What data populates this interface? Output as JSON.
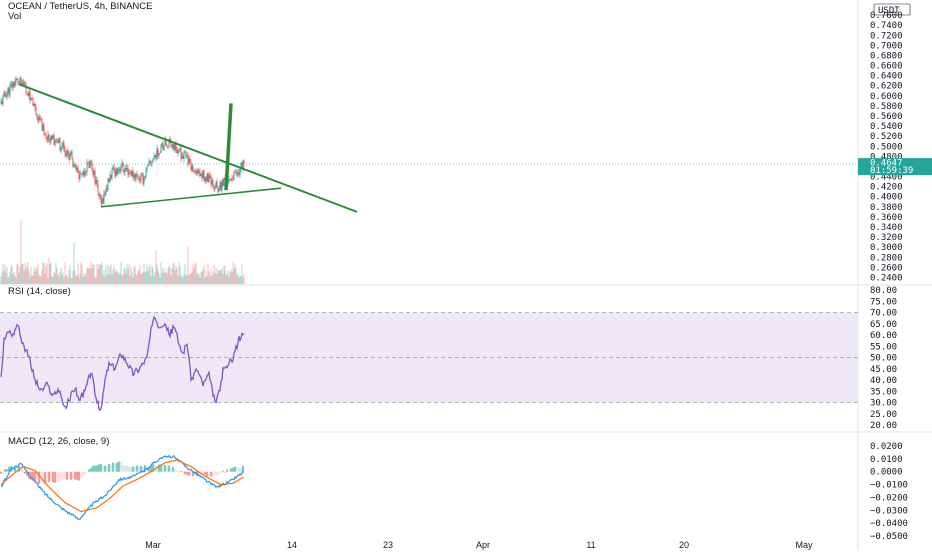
{
  "header": {
    "symbol_line": "OCEAN / TetherUS, 4h, BINANCE",
    "vol_label": "Vol",
    "currency_label": "USDT"
  },
  "price_badge": {
    "price": "0.4647",
    "countdown": "01:59:39"
  },
  "rsi_header": "RSI (14, close)",
  "macd_header": "MACD (12, 26, close, 9)",
  "colors": {
    "up": "#26a69a",
    "down": "#ef5350",
    "trendline": "#2e8b3a",
    "rsi_line": "#7e57c2",
    "rsi_band": "#ede7f6",
    "macd_line": "#2196f3",
    "signal_line": "#ff6d00",
    "badge": "#26a69a"
  },
  "chart_data": [
    {
      "type": "candlestick",
      "name": "price",
      "title": "OCEAN / TetherUS, 4h, BINANCE",
      "y_ticks": [
        "0.7600",
        "0.7400",
        "0.7200",
        "0.7000",
        "0.6800",
        "0.6600",
        "0.6400",
        "0.6200",
        "0.6000",
        "0.5800",
        "0.5600",
        "0.5400",
        "0.5200",
        "0.5000",
        "0.4800",
        "0.4600",
        "0.4400",
        "0.4200",
        "0.4000",
        "0.3800",
        "0.3600",
        "0.3400",
        "0.3200",
        "0.3000",
        "0.2800",
        "0.2600",
        "0.2400"
      ],
      "ylim": [
        0.235,
        0.775
      ],
      "last_price": 0.4647,
      "start_price": 0.585,
      "path_anchors": [
        [
          0,
          0.585
        ],
        [
          5,
          0.605
        ],
        [
          15,
          0.63
        ],
        [
          24,
          0.62
        ],
        [
          34,
          0.57
        ],
        [
          46,
          0.52
        ],
        [
          58,
          0.505
        ],
        [
          70,
          0.48
        ],
        [
          78,
          0.44
        ],
        [
          90,
          0.47
        ],
        [
          100,
          0.385
        ],
        [
          110,
          0.445
        ],
        [
          120,
          0.46
        ],
        [
          132,
          0.445
        ],
        [
          142,
          0.435
        ],
        [
          150,
          0.47
        ],
        [
          160,
          0.5
        ],
        [
          170,
          0.505
        ],
        [
          178,
          0.49
        ],
        [
          186,
          0.475
        ],
        [
          192,
          0.445
        ],
        [
          200,
          0.445
        ],
        [
          210,
          0.43
        ],
        [
          218,
          0.415
        ],
        [
          226,
          0.435
        ],
        [
          234,
          0.44
        ],
        [
          243,
          0.4647
        ]
      ],
      "drawings": [
        {
          "kind": "descending-trendline",
          "from": [
            18,
            0.623
          ],
          "to": [
            356,
            0.37
          ]
        },
        {
          "kind": "ascending-support",
          "from": [
            100,
            0.38
          ],
          "to": [
            280,
            0.417
          ]
        },
        {
          "kind": "breakout-arrow",
          "from": [
            225,
            0.413
          ],
          "to": [
            230,
            0.585
          ]
        }
      ]
    },
    {
      "type": "bar",
      "name": "volume",
      "title": "Vol",
      "description_levels": "relative volume heights 0-1",
      "spikes": [
        [
          20,
          0.85
        ],
        [
          73,
          0.55
        ],
        [
          155,
          0.45
        ],
        [
          187,
          0.5
        ],
        [
          48,
          0.35
        ],
        [
          120,
          0.3
        ]
      ]
    },
    {
      "type": "line",
      "name": "RSI",
      "title": "RSI (14, close)",
      "y_ticks": [
        "80.00",
        "75.00",
        "70.00",
        "65.00",
        "60.00",
        "55.00",
        "50.00",
        "45.00",
        "40.00",
        "35.00",
        "30.00",
        "25.00",
        "20.00"
      ],
      "ylim": [
        20,
        80
      ],
      "bands": [
        30,
        50,
        70
      ],
      "path_anchors": [
        [
          0,
          40
        ],
        [
          3,
          58
        ],
        [
          8,
          62
        ],
        [
          12,
          60
        ],
        [
          16,
          65
        ],
        [
          22,
          56
        ],
        [
          28,
          50
        ],
        [
          34,
          40
        ],
        [
          40,
          35
        ],
        [
          46,
          38
        ],
        [
          52,
          33
        ],
        [
          58,
          36
        ],
        [
          64,
          27
        ],
        [
          70,
          33
        ],
        [
          74,
          37
        ],
        [
          78,
          31
        ],
        [
          84,
          35
        ],
        [
          90,
          44
        ],
        [
          96,
          30
        ],
        [
          100,
          26
        ],
        [
          104,
          40
        ],
        [
          108,
          47
        ],
        [
          114,
          45
        ],
        [
          120,
          52
        ],
        [
          126,
          48
        ],
        [
          132,
          43
        ],
        [
          138,
          45
        ],
        [
          146,
          50
        ],
        [
          150,
          62
        ],
        [
          154,
          68
        ],
        [
          158,
          64
        ],
        [
          164,
          66
        ],
        [
          168,
          60
        ],
        [
          174,
          64
        ],
        [
          178,
          55
        ],
        [
          182,
          52
        ],
        [
          186,
          57
        ],
        [
          190,
          40
        ],
        [
          196,
          45
        ],
        [
          202,
          38
        ],
        [
          208,
          42
        ],
        [
          214,
          30
        ],
        [
          218,
          34
        ],
        [
          222,
          44
        ],
        [
          226,
          46
        ],
        [
          232,
          50
        ],
        [
          238,
          58
        ],
        [
          243,
          61
        ]
      ]
    },
    {
      "type": "line",
      "name": "MACD",
      "title": "MACD (12, 26, close, 9)",
      "y_ticks": [
        "0.0200",
        "0.0100",
        "0.0000",
        "−0.0100",
        "−0.0200",
        "−0.0300",
        "−0.0400",
        "−0.0500"
      ],
      "ylim": [
        -0.052,
        0.025
      ],
      "series": [
        {
          "role": "macd",
          "values": [
            [
              0,
              -0.012
            ],
            [
              10,
              0.002
            ],
            [
              20,
              0.006
            ],
            [
              30,
              -0.004
            ],
            [
              45,
              -0.018
            ],
            [
              60,
              -0.028
            ],
            [
              78,
              -0.037
            ],
            [
              92,
              -0.025
            ],
            [
              105,
              -0.018
            ],
            [
              118,
              -0.006
            ],
            [
              132,
              -0.004
            ],
            [
              145,
              0.002
            ],
            [
              160,
              0.011
            ],
            [
              172,
              0.012
            ],
            [
              185,
              0.004
            ],
            [
              200,
              -0.004
            ],
            [
              215,
              -0.012
            ],
            [
              228,
              -0.008
            ],
            [
              243,
              0.0
            ]
          ]
        },
        {
          "role": "signal",
          "values": [
            [
              0,
              -0.01
            ],
            [
              12,
              -0.002
            ],
            [
              22,
              0.004
            ],
            [
              34,
              0.001
            ],
            [
              48,
              -0.012
            ],
            [
              64,
              -0.024
            ],
            [
              80,
              -0.031
            ],
            [
              96,
              -0.028
            ],
            [
              110,
              -0.02
            ],
            [
              122,
              -0.011
            ],
            [
              136,
              -0.006
            ],
            [
              150,
              0.0
            ],
            [
              164,
              0.007
            ],
            [
              176,
              0.009
            ],
            [
              190,
              0.004
            ],
            [
              205,
              -0.004
            ],
            [
              220,
              -0.01
            ],
            [
              232,
              -0.009
            ],
            [
              243,
              -0.004
            ]
          ]
        }
      ]
    }
  ],
  "x_ticks": [
    "Mar",
    "14",
    "23",
    "Apr",
    "11",
    "20",
    "May"
  ]
}
